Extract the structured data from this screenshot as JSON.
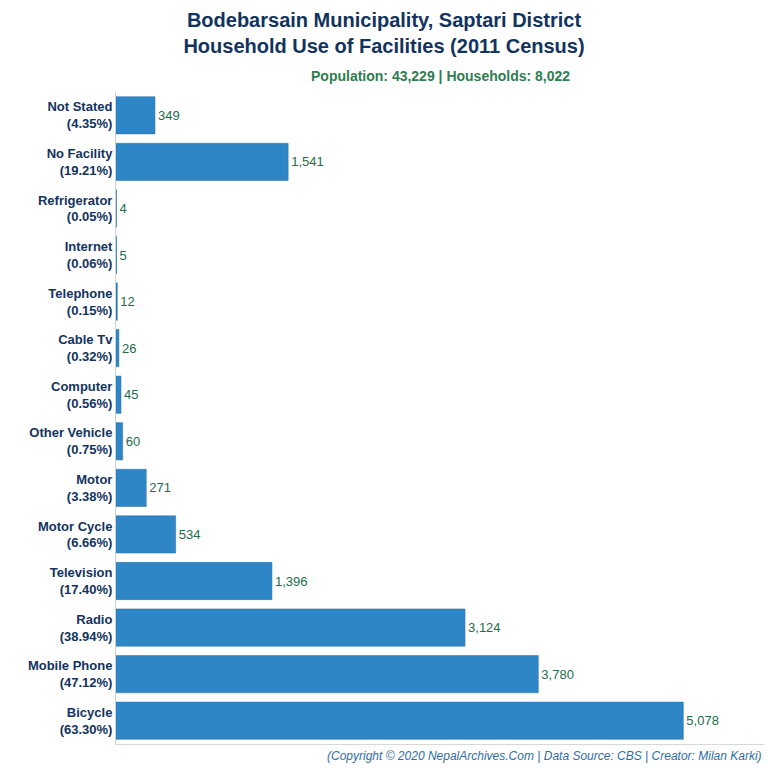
{
  "chart_data": {
    "type": "bar",
    "orientation": "horizontal",
    "title": "Bodebarsain Municipality, Saptari District\nHousehold Use of Facilities (2011 Census)",
    "subtitle": "Population: 43,229 | Households: 8,022",
    "annotations": [
      "(Copyright © 2020 NepalArchives.Com | Data Source: CBS | Creator: Milan Karki)"
    ],
    "categories": [
      "Not Stated\n(4.35%)",
      "No Facility\n(19.21%)",
      "Refrigerator\n(0.05%)",
      "Internet\n(0.06%)",
      "Telephone\n(0.15%)",
      "Cable Tv\n(0.32%)",
      "Computer\n(0.56%)",
      "Other Vehicle\n(0.75%)",
      "Motor\n(3.38%)",
      "Motor Cycle\n(6.66%)",
      "Television\n(17.40%)",
      "Radio\n(38.94%)",
      "Mobile Phone\n(47.12%)",
      "Bicycle\n(63.30%)"
    ],
    "values": [
      349,
      1541,
      4,
      5,
      12,
      26,
      45,
      60,
      271,
      534,
      1396,
      3124,
      3780,
      5078
    ],
    "value_labels": [
      "349",
      "1,541",
      "4",
      "5",
      "12",
      "26",
      "45",
      "60",
      "271",
      "534",
      "1,396",
      "3,124",
      "3,780",
      "5,078"
    ],
    "color": "#2f86c6",
    "xlim": [
      0,
      5800
    ],
    "grid": false,
    "data_labels": true,
    "tick_labels": "y"
  }
}
